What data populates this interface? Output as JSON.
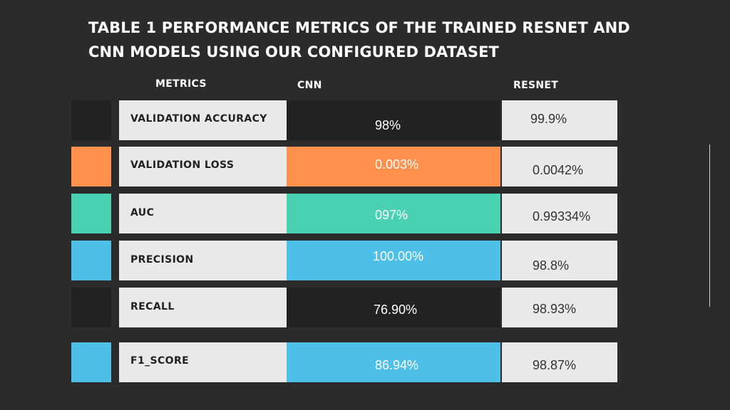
{
  "title": {
    "line1": "TABLE 1 PERFORMANCE METRICS OF THE TRAINED RESNET AND",
    "line2": "CNN MODELS USING OUR CONFIGURED DATASET"
  },
  "headers": {
    "metrics": "METRICS",
    "cnn": "CNN",
    "resnet": "RESNET"
  },
  "colors": {
    "dark": "#232223",
    "orange": "#ff914d",
    "teal": "#4ad1b1",
    "blue": "#4ebfe6",
    "light": "#e9e9e9"
  },
  "rows": [
    {
      "metric": "VALIDATION ACCURACY",
      "cnn": "98%",
      "resnet": "99.9%",
      "color": "#232223"
    },
    {
      "metric": "VALIDATION LOSS",
      "cnn": "0.003%",
      "resnet": "0.0042%",
      "color": "#ff914d"
    },
    {
      "metric": "AUC",
      "cnn": "097%",
      "resnet": "0.99334%",
      "color": "#4ad1b1"
    },
    {
      "metric": "PRECISION",
      "cnn": "100.00%",
      "resnet": "98.8%",
      "color": "#4ebfe6"
    },
    {
      "metric": "RECALL",
      "cnn": "76.90%",
      "resnet": "98.93%",
      "color": "#232223"
    },
    {
      "metric": "F1_SCORE",
      "cnn": "86.94%",
      "resnet": "98.87%",
      "color": "#4ebfe6"
    }
  ]
}
